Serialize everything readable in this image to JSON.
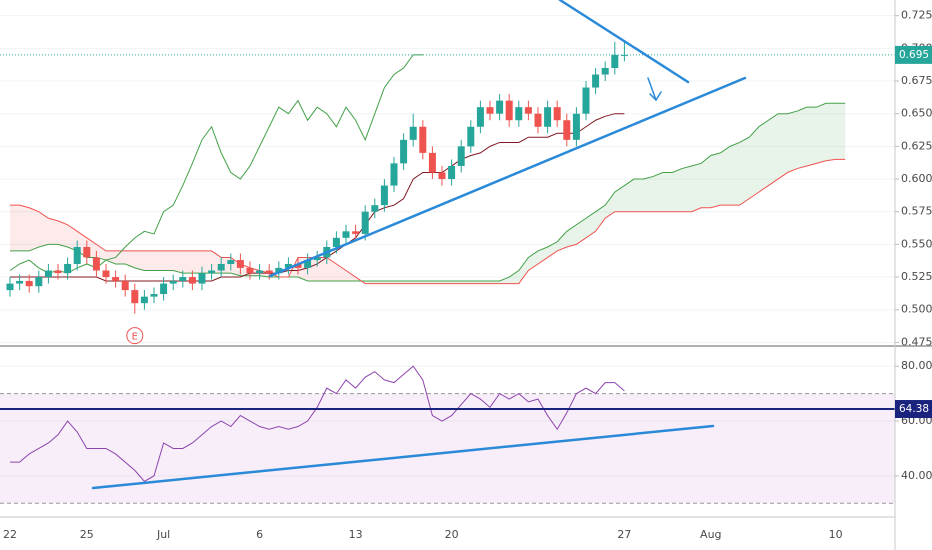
{
  "chart_data": [
    {
      "type": "candlestick",
      "categories": [
        "22",
        null,
        null,
        null,
        null,
        null,
        null,
        null,
        "25",
        null,
        null,
        null,
        null,
        null,
        null,
        null,
        "Jul",
        null,
        null,
        null,
        null,
        null,
        null,
        null,
        null,
        null,
        "6",
        null,
        null,
        null,
        null,
        null,
        null,
        null,
        null,
        null,
        "13",
        null,
        null,
        null,
        null,
        null,
        null,
        null,
        null,
        null,
        "20",
        null,
        null,
        null,
        null,
        null,
        null,
        null,
        null,
        null,
        null,
        null,
        null,
        null,
        null,
        null,
        null,
        null,
        "27",
        null,
        null,
        null,
        null,
        null,
        null,
        null,
        null,
        "Aug",
        null,
        null,
        null,
        null,
        null,
        null,
        null,
        null,
        null,
        null,
        null,
        null,
        "10",
        null
      ],
      "open": [
        0.515,
        0.52,
        0.522,
        0.518,
        0.525,
        0.53,
        0.528,
        0.535,
        0.548,
        0.54,
        0.53,
        0.525,
        0.522,
        0.515,
        0.505,
        0.51,
        0.512,
        0.52,
        0.522,
        0.525,
        0.52,
        0.528,
        0.53,
        0.535,
        0.538,
        0.532,
        0.528,
        0.53,
        0.528,
        0.532,
        0.535,
        0.532,
        0.538,
        0.54,
        0.548,
        0.555,
        0.56,
        0.558,
        0.575,
        0.58,
        0.595,
        0.612,
        0.63,
        0.64,
        0.62,
        0.605,
        0.6,
        0.61,
        0.625,
        0.64,
        0.655,
        0.65,
        0.66,
        0.645,
        0.655,
        0.65,
        0.64,
        0.655,
        0.645,
        0.63,
        0.65,
        0.67,
        0.68,
        0.685,
        0.695,
        null,
        null,
        null,
        null,
        null,
        null,
        null,
        null,
        null,
        null,
        null,
        null,
        null,
        null,
        null,
        null,
        null,
        null,
        null,
        null,
        null,
        null,
        null
      ],
      "high": [
        0.525,
        0.527,
        0.527,
        0.53,
        0.535,
        0.535,
        0.54,
        0.553,
        0.553,
        0.545,
        0.535,
        0.53,
        0.527,
        0.52,
        0.515,
        0.517,
        0.525,
        0.527,
        0.53,
        0.53,
        0.533,
        0.535,
        0.54,
        0.543,
        0.543,
        0.537,
        0.535,
        0.535,
        0.537,
        0.54,
        0.54,
        0.543,
        0.545,
        0.553,
        0.56,
        0.565,
        0.565,
        0.58,
        0.585,
        0.6,
        0.617,
        0.635,
        0.65,
        0.645,
        0.625,
        0.61,
        0.615,
        0.63,
        0.645,
        0.66,
        0.66,
        0.665,
        0.665,
        0.66,
        0.66,
        0.655,
        0.66,
        0.66,
        0.65,
        0.655,
        0.675,
        0.685,
        0.69,
        0.705,
        0.705,
        null,
        null,
        null,
        null,
        null,
        null,
        null,
        null,
        null,
        null,
        null,
        null,
        null,
        null,
        null,
        null,
        null,
        null,
        null,
        null,
        null,
        null,
        null
      ],
      "low": [
        0.51,
        0.515,
        0.513,
        0.513,
        0.52,
        0.523,
        0.523,
        0.53,
        0.535,
        0.525,
        0.52,
        0.517,
        0.51,
        0.497,
        0.5,
        0.505,
        0.507,
        0.515,
        0.517,
        0.515,
        0.515,
        0.523,
        0.525,
        0.53,
        0.527,
        0.523,
        0.523,
        0.523,
        0.523,
        0.527,
        0.527,
        0.527,
        0.533,
        0.535,
        0.543,
        0.55,
        0.553,
        0.553,
        0.57,
        0.575,
        0.59,
        0.607,
        0.625,
        0.615,
        0.6,
        0.595,
        0.595,
        0.605,
        0.62,
        0.635,
        0.645,
        0.645,
        0.64,
        0.64,
        0.645,
        0.635,
        0.635,
        0.64,
        0.625,
        0.625,
        0.645,
        0.665,
        0.675,
        0.68,
        0.69,
        null,
        null,
        null,
        null,
        null,
        null,
        null,
        null,
        null,
        null,
        null,
        null,
        null,
        null,
        null,
        null,
        null,
        null,
        null,
        null,
        null,
        null,
        null
      ],
      "close": [
        0.52,
        0.522,
        0.518,
        0.525,
        0.53,
        0.528,
        0.535,
        0.548,
        0.54,
        0.53,
        0.525,
        0.522,
        0.515,
        0.505,
        0.51,
        0.512,
        0.52,
        0.522,
        0.525,
        0.52,
        0.528,
        0.53,
        0.535,
        0.538,
        0.532,
        0.528,
        0.53,
        0.528,
        0.532,
        0.535,
        0.532,
        0.538,
        0.54,
        0.548,
        0.555,
        0.56,
        0.558,
        0.575,
        0.58,
        0.595,
        0.612,
        0.63,
        0.64,
        0.62,
        0.605,
        0.6,
        0.61,
        0.625,
        0.64,
        0.655,
        0.65,
        0.66,
        0.645,
        0.655,
        0.65,
        0.64,
        0.655,
        0.645,
        0.63,
        0.65,
        0.67,
        0.68,
        0.685,
        0.695,
        0.695,
        null,
        null,
        null,
        null,
        null,
        null,
        null,
        null,
        null,
        null,
        null,
        null,
        null,
        null,
        null,
        null,
        null,
        null,
        null,
        null,
        null,
        null,
        null
      ],
      "up_color": "#26a69a",
      "down_color": "#ef5350",
      "series": [
        {
          "color": "#43a047",
          "values": [
            0.53,
            0.535,
            0.538,
            0.532,
            0.528,
            0.53,
            0.528,
            0.532,
            0.535,
            0.532,
            0.538,
            0.54,
            0.548,
            0.555,
            0.56,
            0.558,
            0.575,
            0.58,
            0.595,
            0.612,
            0.63,
            0.64,
            0.62,
            0.605,
            0.6,
            0.61,
            0.625,
            0.64,
            0.655,
            0.65,
            0.66,
            0.645,
            0.655,
            0.65,
            0.64,
            0.655,
            0.645,
            0.63,
            0.65,
            0.67,
            0.68,
            0.685,
            0.695,
            0.695,
            null,
            null,
            null,
            null,
            null,
            null,
            null,
            null,
            null,
            null,
            null,
            null,
            null,
            null,
            null,
            null,
            null,
            null,
            null,
            null,
            null,
            null,
            null,
            null,
            null,
            null,
            null,
            null,
            null,
            null,
            null,
            null,
            null,
            null,
            null,
            null,
            null,
            null,
            null,
            null,
            null,
            null,
            null,
            null
          ]
        },
        {
          "color": "#801922",
          "values": [
            0.525,
            0.525,
            0.525,
            0.525,
            0.525,
            0.525,
            0.525,
            0.525,
            0.525,
            0.525,
            0.522,
            0.522,
            0.522,
            0.522,
            0.522,
            0.522,
            0.522,
            0.522,
            0.522,
            0.522,
            0.522,
            0.522,
            0.525,
            0.525,
            0.525,
            0.528,
            0.528,
            0.528,
            0.528,
            0.53,
            0.53,
            0.532,
            0.535,
            0.54,
            0.545,
            0.55,
            0.555,
            0.565,
            0.575,
            0.578,
            0.58,
            0.585,
            0.6,
            0.605,
            0.605,
            0.605,
            0.61,
            0.615,
            0.618,
            0.62,
            0.625,
            0.628,
            0.628,
            0.628,
            0.632,
            0.632,
            0.632,
            0.635,
            0.635,
            0.635,
            0.64,
            0.645,
            0.648,
            0.65,
            0.65,
            null,
            null,
            null,
            null,
            null,
            null,
            null,
            null,
            null,
            null,
            null,
            null,
            null,
            null,
            null,
            null,
            null,
            null,
            null,
            null,
            null,
            null,
            null
          ]
        }
      ],
      "cloud": {
        "span_a": {
          "color": "#43a047",
          "values": [
            0.545,
            0.545,
            0.545,
            0.548,
            0.55,
            0.55,
            0.548,
            0.545,
            0.54,
            0.54,
            0.538,
            0.535,
            0.535,
            0.532,
            0.53,
            0.53,
            0.53,
            0.53,
            0.528,
            0.528,
            0.528,
            0.528,
            0.528,
            0.528,
            0.526,
            0.526,
            0.526,
            0.525,
            0.525,
            0.525,
            0.525,
            0.522,
            0.522,
            0.522,
            0.522,
            0.522,
            0.522,
            0.522,
            0.522,
            0.522,
            0.522,
            0.522,
            0.522,
            0.522,
            0.522,
            0.522,
            0.522,
            0.522,
            0.522,
            0.522,
            0.522,
            0.522,
            0.525,
            0.53,
            0.54,
            0.545,
            0.548,
            0.552,
            0.56,
            0.565,
            0.57,
            0.575,
            0.58,
            0.59,
            0.595,
            0.6,
            0.6,
            0.602,
            0.605,
            0.605,
            0.608,
            0.61,
            0.612,
            0.618,
            0.62,
            0.625,
            0.628,
            0.632,
            0.64,
            0.645,
            0.65,
            0.65,
            0.652,
            0.655,
            0.655,
            0.658,
            0.658,
            0.658
          ]
        },
        "span_b": {
          "color": "#ef5350",
          "values": [
            0.58,
            0.58,
            0.578,
            0.575,
            0.57,
            0.568,
            0.565,
            0.56,
            0.555,
            0.55,
            0.545,
            0.545,
            0.545,
            0.545,
            0.545,
            0.545,
            0.545,
            0.545,
            0.545,
            0.545,
            0.545,
            0.545,
            0.54,
            0.54,
            0.535,
            0.532,
            0.53,
            0.528,
            0.525,
            0.525,
            0.54,
            0.54,
            0.54,
            0.54,
            0.535,
            0.53,
            0.525,
            0.52,
            0.52,
            0.52,
            0.52,
            0.52,
            0.52,
            0.52,
            0.52,
            0.52,
            0.52,
            0.52,
            0.52,
            0.52,
            0.52,
            0.52,
            0.52,
            0.52,
            0.53,
            0.535,
            0.54,
            0.545,
            0.548,
            0.55,
            0.555,
            0.56,
            0.57,
            0.575,
            0.575,
            0.575,
            0.575,
            0.575,
            0.575,
            0.575,
            0.575,
            0.575,
            0.578,
            0.578,
            0.58,
            0.58,
            0.58,
            0.585,
            0.59,
            0.595,
            0.6,
            0.605,
            0.608,
            0.61,
            0.612,
            0.614,
            0.615,
            0.615
          ]
        }
      },
      "events": [
        {
          "label": "E",
          "index": 13
        }
      ],
      "ylim": [
        0.473,
        0.737
      ],
      "yticks": [
        0.475,
        {
          "value": 0.5,
          "label": "0.500"
        },
        0.525,
        {
          "value": 0.55,
          "label": "0.550"
        },
        0.575,
        {
          "value": 0.6,
          "label": "0.600"
        },
        0.625,
        {
          "value": 0.65,
          "label": "0.650"
        },
        0.675,
        {
          "value": 0.7,
          "label": "0.700"
        },
        0.725
      ],
      "grid": true,
      "price_line": 0.695,
      "price_line_color": "#26a69a"
    },
    {
      "type": "line",
      "values": [
        45,
        45,
        48,
        50,
        52,
        55,
        60,
        56,
        50,
        50,
        50,
        48,
        45,
        42,
        38,
        40,
        52,
        50,
        50,
        52,
        55,
        58,
        60,
        58,
        62,
        60,
        58,
        57,
        58,
        57,
        58,
        60,
        65,
        72,
        70,
        75,
        72,
        76,
        78,
        75,
        74,
        77,
        80,
        75,
        62,
        60,
        62,
        66,
        70,
        68,
        65,
        70,
        68,
        70,
        67,
        68,
        62,
        57,
        63,
        70,
        72,
        70,
        74,
        74,
        71,
        null,
        null,
        null,
        null,
        null,
        null,
        null,
        null,
        null,
        null,
        null,
        null,
        null,
        null,
        null,
        null,
        null,
        null,
        null,
        null,
        null,
        null,
        null
      ],
      "color": "#8e44ad",
      "ylim": [
        25,
        87
      ],
      "yticks": [
        {
          "value": 40,
          "label": "40.00"
        },
        {
          "value": 60,
          "label": "60.00"
        },
        {
          "value": 80,
          "label": "80.00"
        }
      ],
      "grid": true,
      "bands": [
        30,
        70
      ],
      "band_color": "#9c27b0",
      "price_line": 64.38,
      "price_line_color": "#1a237e"
    }
  ]
}
